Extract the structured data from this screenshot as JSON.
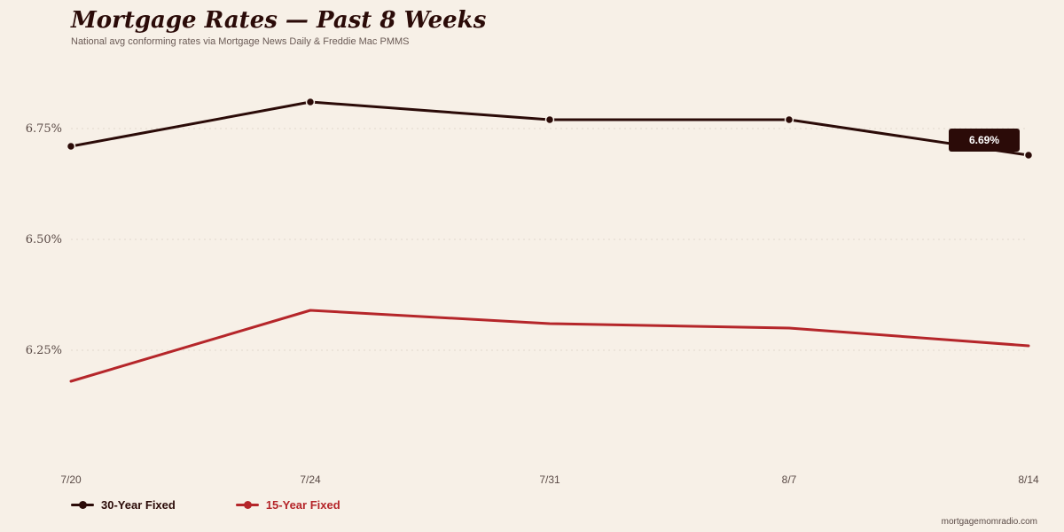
{
  "header": {
    "title": "Mortgage Rates — Past 8 Weeks",
    "subtitle": "National avg conforming rates via Mortgage News Daily & Freddie Mac PMMS"
  },
  "footer": {
    "source": "mortgagemomradio.com"
  },
  "colors": {
    "background": "#f7f0e7",
    "series_30": "#2b0b08",
    "series_15": "#b5262a",
    "gridline": "#e2d8cd",
    "callout_bg": "#2b0b08",
    "callout_text": "#ffffff"
  },
  "chart_data": {
    "type": "line",
    "title": "Mortgage Rates — Past 8 Weeks",
    "subtitle": "National avg conforming rates via Mortgage News Daily & Freddie Mac PMMS",
    "x": [
      "7/20",
      "7/24",
      "7/31",
      "8/7",
      "8/14"
    ],
    "series": [
      {
        "name": "30-Year Fixed",
        "values": [
          6.71,
          6.81,
          6.77,
          6.77,
          6.69
        ],
        "markers": true,
        "color": "#2b0b08"
      },
      {
        "name": "15-Year Fixed",
        "values": [
          6.18,
          6.34,
          6.31,
          6.3,
          6.26
        ],
        "markers": false,
        "color": "#b5262a"
      }
    ],
    "y_ticks": [
      6.25,
      6.5,
      6.75
    ],
    "y_tick_labels": [
      "6.25%",
      "6.50%",
      "6.75%"
    ],
    "ylim": [
      6.0,
      6.9
    ],
    "grid": true,
    "legend": "bottom-left",
    "annotations": [
      {
        "series": "30-Year Fixed",
        "x": "8/14",
        "text": "6.69%"
      }
    ]
  }
}
